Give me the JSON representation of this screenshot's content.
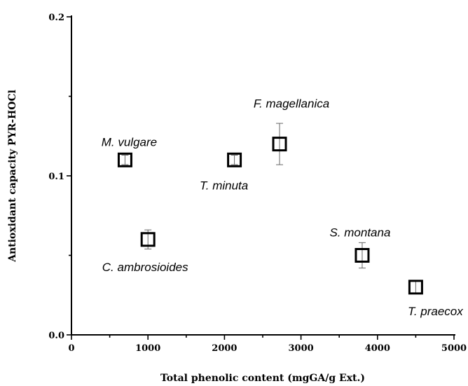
{
  "chart_data": {
    "type": "scatter",
    "title": "",
    "xlabel": "Total phenolic content (mgGA/g Ext.)",
    "ylabel": "Antioxidant capacity PYR-HOCl",
    "xlim": [
      0,
      5000
    ],
    "ylim": [
      0,
      0.2
    ],
    "x_ticks": [
      "0",
      "1000",
      "2000",
      "3000",
      "4000",
      "5000"
    ],
    "y_ticks": [
      "0.0",
      "0.1",
      "0.2"
    ],
    "grid": false,
    "legend": "none",
    "marker": "open-square",
    "colors": {
      "marker_stroke": "#000000",
      "marker_fill": "#ffffff",
      "error_bar": "#666666"
    },
    "points": [
      {
        "label": "M. vulgare",
        "x": 700,
        "y": 0.11,
        "err": 0.003
      },
      {
        "label": "C. ambrosioides",
        "x": 1000,
        "y": 0.06,
        "err": 0.006
      },
      {
        "label": "T. minuta",
        "x": 2130,
        "y": 0.11,
        "err": 0.003
      },
      {
        "label": "F. magellanica",
        "x": 2720,
        "y": 0.12,
        "err": 0.013
      },
      {
        "label": "S. montana",
        "x": 3800,
        "y": 0.05,
        "err": 0.008
      },
      {
        "label": "T. praecox",
        "x": 4500,
        "y": 0.03,
        "err": 0.004
      }
    ]
  }
}
